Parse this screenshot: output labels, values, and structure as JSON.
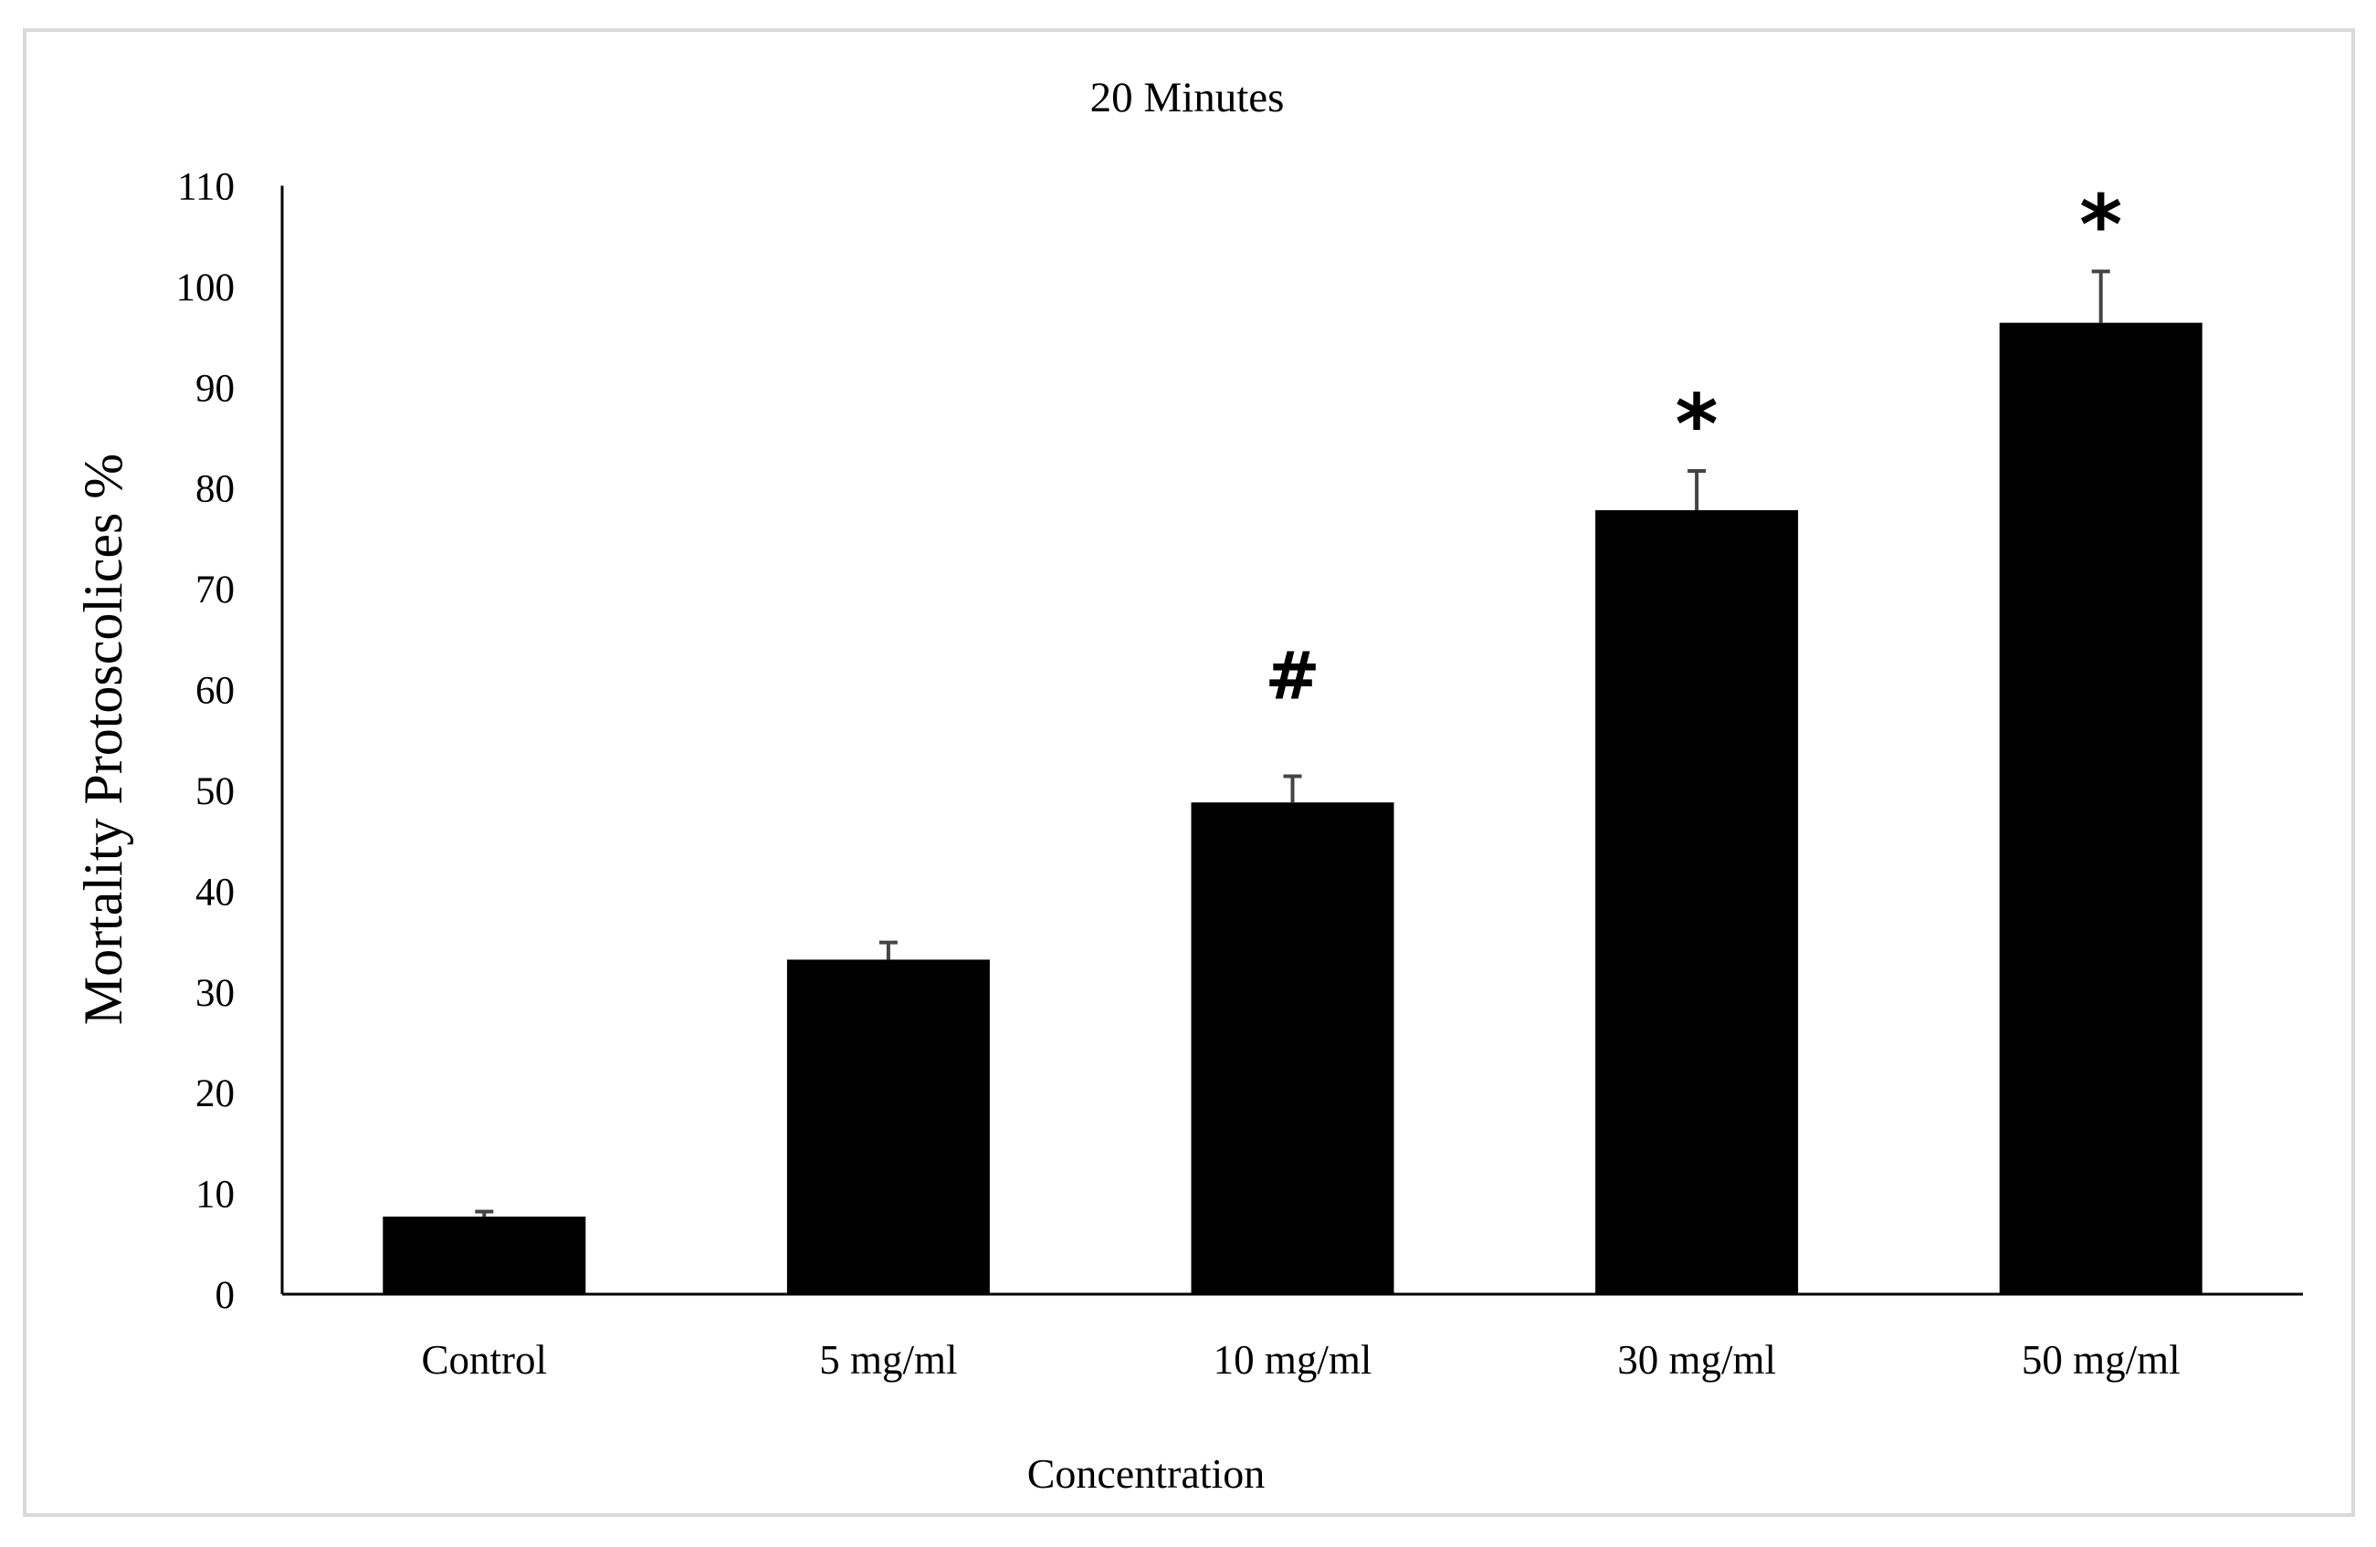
{
  "chart_data": {
    "type": "bar",
    "title": "20 Minutes",
    "xlabel": "Concentration",
    "ylabel": "Mortality Protoscolices %",
    "categories": [
      "Control",
      "5 mg/ml",
      "10 mg/ml",
      "30 mg/ml",
      "50 mg/ml"
    ],
    "values": [
      7.7,
      33.2,
      48.8,
      77.8,
      96.4
    ],
    "error": [
      0.5,
      1.7,
      2.6,
      3.9,
      5.1
    ],
    "annotations": [
      "",
      "",
      "#",
      "*",
      "*"
    ],
    "ylim": [
      0,
      110
    ],
    "yticks": [
      0,
      10,
      20,
      30,
      40,
      50,
      60,
      70,
      80,
      90,
      100,
      110
    ],
    "grid": false,
    "bar_color": "#000000"
  }
}
